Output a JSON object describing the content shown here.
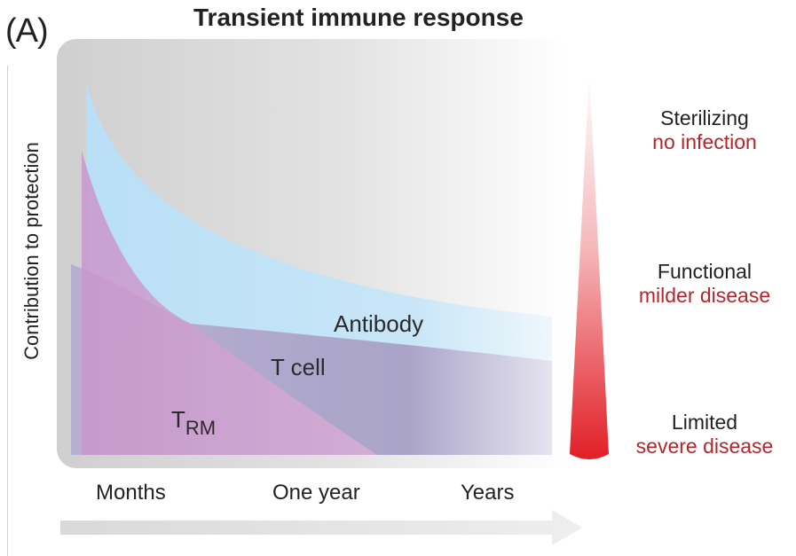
{
  "panel_label": "(A)",
  "title": "Transient immune response",
  "y_axis_label": "Contribution to protection",
  "curves": {
    "antibody": "Antibody",
    "t_cell": "T cell",
    "trm_main": "T",
    "trm_sub": "RM"
  },
  "time_labels": [
    "Months",
    "One year",
    "Years"
  ],
  "protection_levels": [
    {
      "name": "Sterilizing",
      "desc": "no infection"
    },
    {
      "name": "Functional",
      "desc": "milder disease"
    },
    {
      "name": "Limited",
      "desc": "severe disease"
    }
  ],
  "colors": {
    "background_panel": "#d9d9d9",
    "antibody": "#bfe1f7",
    "t_cell": "#a9a3c8",
    "trm": "#cf9ccd",
    "gradient_top": "#ffffff",
    "gradient_bottom": "#e11f26",
    "description_red": "#b5252b"
  }
}
